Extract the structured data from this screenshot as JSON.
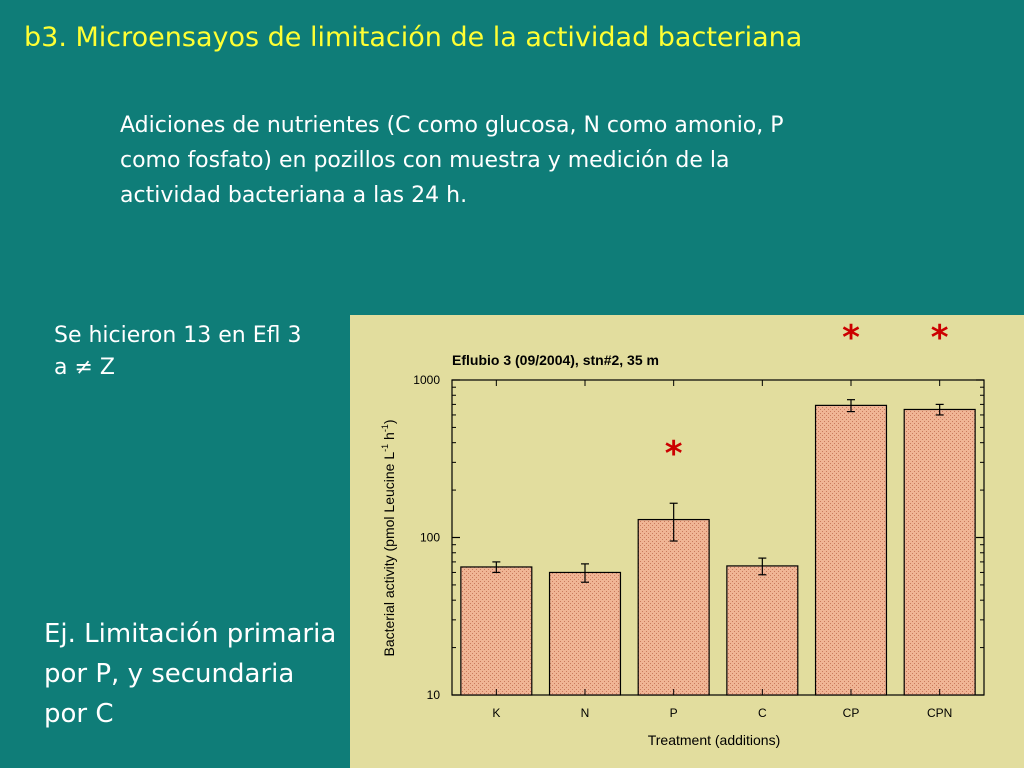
{
  "slide": {
    "title": "b3. Microensayos de limitación de la actividad bacteriana",
    "description": "Adiciones de nutrientes (C como glucosa, N como amonio, P como fosfato) en pozillos con muestra y medición de la actividad bacteriana a las 24 h.",
    "note_left": "Se hicieron 13 en Efl 3 a ≠ Z",
    "conclusion": "Ej. Limitación primaria por P, y secundaria por C",
    "colors": {
      "background": "#0f7d78",
      "title": "#ffff33",
      "text": "#ffffff",
      "panel": "#e2dd9e",
      "bar_fill": "#f0b595",
      "asterisk": "#cc0000"
    }
  },
  "chart_data": {
    "type": "bar",
    "title": "Eflubio 3 (09/2004), stn#2, 35 m",
    "xlabel": "Treatment (additions)",
    "ylabel": "Bacterial activity (pmol Leucine L",
    "ylabel_sup1": "-1",
    "ylabel_mid": " h",
    "ylabel_sup2": "-1",
    "ylabel_end": ")",
    "yscale": "log",
    "ylim": [
      10,
      1000
    ],
    "yticks": [
      10,
      100,
      1000
    ],
    "categories": [
      "K",
      "N",
      "P",
      "C",
      "CP",
      "CPN"
    ],
    "values": [
      65,
      60,
      130,
      66,
      690,
      650
    ],
    "errors": [
      5,
      8,
      35,
      8,
      60,
      50
    ],
    "significant": [
      false,
      false,
      true,
      false,
      true,
      true
    ],
    "significance_marker": "*",
    "grid": false,
    "legend": "none"
  }
}
